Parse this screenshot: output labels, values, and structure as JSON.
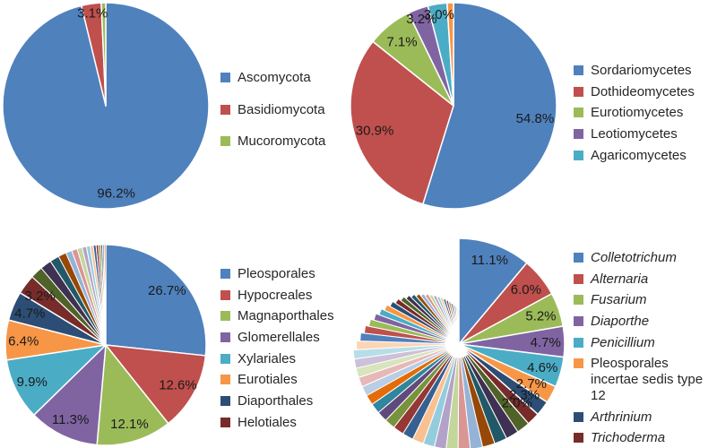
{
  "palette": [
    "#4F81BD",
    "#C0504D",
    "#9BBB59",
    "#8064A2",
    "#4BACC6",
    "#F79646",
    "#2C4D75",
    "#772C2A",
    "#4F6228",
    "#3F3151",
    "#215968",
    "#974806",
    "#95B3D7",
    "#D99694",
    "#C3D69B",
    "#B3A2C7",
    "#93CDDD",
    "#FAC090",
    "#366092",
    "#953734",
    "#77933C",
    "#604A7B",
    "#31859C",
    "#E36C09",
    "#B9CDE5",
    "#E6B9B8",
    "#D7E4BC",
    "#CCC1D9",
    "#B7DEE8",
    "#FCD5B5"
  ],
  "label_color": "#1a1a1a",
  "legend_text_color": "#262626",
  "chart_data": [
    {
      "type": "pie",
      "name": "fungal-phyla-pie",
      "legend_position": "right",
      "slices": [
        {
          "label": "Ascomycota",
          "value": 96.2,
          "pct_label": "96.2%",
          "in_legend": true,
          "italic": false
        },
        {
          "label": "Basidiomycota",
          "value": 3.1,
          "pct_label": "3.1%",
          "in_legend": true,
          "italic": false
        },
        {
          "label": "Mucoromycota",
          "value": 0.7,
          "pct_label": "",
          "in_legend": true,
          "italic": false
        }
      ],
      "tail_values": []
    },
    {
      "type": "pie",
      "name": "fungal-classes-pie",
      "legend_position": "right",
      "slices": [
        {
          "label": "Sordariomycetes",
          "value": 54.8,
          "pct_label": "54.8%",
          "in_legend": true,
          "italic": false
        },
        {
          "label": "Dothideomycetes",
          "value": 30.9,
          "pct_label": "30.9%",
          "in_legend": true,
          "italic": false
        },
        {
          "label": "Eurotiomycetes",
          "value": 7.1,
          "pct_label": "7.1%",
          "in_legend": true,
          "italic": false
        },
        {
          "label": "Leotiomycetes",
          "value": 3.2,
          "pct_label": "3.2%",
          "in_legend": true,
          "italic": false
        },
        {
          "label": "Agaricomycetes",
          "value": 3.0,
          "pct_label": "3.0%",
          "in_legend": true,
          "italic": false
        },
        {
          "label": "",
          "value": 1.0,
          "pct_label": "",
          "in_legend": false,
          "italic": false
        }
      ],
      "tail_values": []
    },
    {
      "type": "pie",
      "name": "fungal-orders-pie",
      "legend_position": "right",
      "slices": [
        {
          "label": "Pleosporales",
          "value": 26.7,
          "pct_label": "26.7%",
          "in_legend": true,
          "italic": false
        },
        {
          "label": "Hypocreales",
          "value": 12.6,
          "pct_label": "12.6%",
          "in_legend": true,
          "italic": false
        },
        {
          "label": "Magnaporthales",
          "value": 12.1,
          "pct_label": "12.1%",
          "in_legend": true,
          "italic": false
        },
        {
          "label": "Glomerellales",
          "value": 11.3,
          "pct_label": "11.3%",
          "in_legend": true,
          "italic": false
        },
        {
          "label": "Xylariales",
          "value": 9.9,
          "pct_label": "9.9%",
          "in_legend": true,
          "italic": false
        },
        {
          "label": "Eurotiales",
          "value": 6.4,
          "pct_label": "6.4%",
          "in_legend": true,
          "italic": false
        },
        {
          "label": "Diaporthales",
          "value": 4.7,
          "pct_label": "4.7%",
          "in_legend": true,
          "italic": false
        },
        {
          "label": "Helotiales",
          "value": 3.2,
          "pct_label": "3.2%",
          "in_legend": true,
          "italic": false
        }
      ],
      "tail_values": [
        2.0,
        1.8,
        1.5,
        1.3,
        1.0,
        0.9,
        0.8,
        0.7,
        0.6,
        0.5,
        0.45,
        0.4,
        0.35,
        0.3,
        0.25,
        0.25
      ]
    },
    {
      "type": "pie",
      "name": "fungal-genera-pie",
      "legend_position": "right",
      "slices": [
        {
          "label": "Colletotrichum",
          "value": 11.1,
          "pct_label": "11.1%",
          "in_legend": true,
          "italic": true
        },
        {
          "label": "Alternaria",
          "value": 6.0,
          "pct_label": "6.0%",
          "in_legend": true,
          "italic": true
        },
        {
          "label": "Fusarium",
          "value": 5.2,
          "pct_label": "5.2%",
          "in_legend": true,
          "italic": true
        },
        {
          "label": "Diaporthe",
          "value": 4.7,
          "pct_label": "4.7%",
          "in_legend": true,
          "italic": true
        },
        {
          "label": "Penicillium",
          "value": 4.6,
          "pct_label": "4.6%",
          "in_legend": true,
          "italic": true
        },
        {
          "label": "Pleosporales incertae sedis type 12",
          "value": 2.7,
          "pct_label": "2.7%",
          "in_legend": true,
          "italic": false
        },
        {
          "label": "Arthrinium",
          "value": 2.3,
          "pct_label": "2.3%",
          "in_legend": true,
          "italic": true
        },
        {
          "label": "Trichoderma",
          "value": 2.0,
          "pct_label": "2.0%",
          "in_legend": true,
          "italic": true
        }
      ],
      "tail_values": [
        2.0,
        1.97,
        1.94,
        1.91,
        1.88,
        1.85,
        1.82,
        1.79,
        1.75,
        1.72,
        1.69,
        1.66,
        1.63,
        1.6,
        1.57,
        1.54,
        1.51,
        1.48,
        1.45,
        1.42,
        1.39,
        1.36,
        1.33,
        1.3,
        1.26,
        1.23,
        1.2,
        1.17,
        1.14,
        1.11,
        1.08,
        1.05,
        1.02,
        0.99,
        0.96,
        0.93,
        0.9,
        0.87,
        0.84,
        0.81,
        0.78,
        0.75,
        0.71,
        0.68,
        0.65,
        0.62,
        0.59,
        0.56
      ]
    }
  ]
}
